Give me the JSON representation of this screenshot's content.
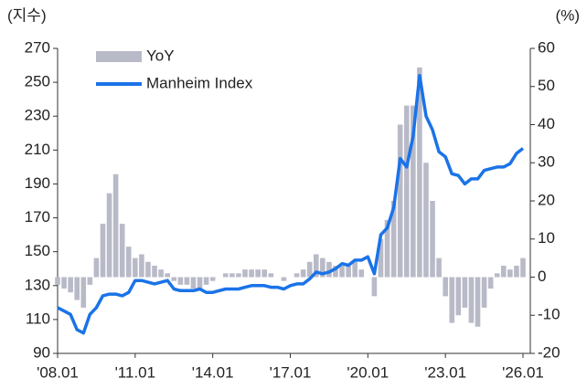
{
  "chart_data": {
    "type": "bar_line",
    "left_unit": "(지수)",
    "right_unit": "(%)",
    "categories": [
      "'08.01",
      null,
      null,
      null,
      null,
      null,
      null,
      null,
      null,
      null,
      null,
      null,
      "'11.01",
      null,
      null,
      null,
      null,
      null,
      null,
      null,
      null,
      null,
      null,
      null,
      "'14.01",
      null,
      null,
      null,
      null,
      null,
      null,
      null,
      null,
      null,
      null,
      null,
      "'17.01",
      null,
      null,
      null,
      null,
      null,
      null,
      null,
      null,
      null,
      null,
      null,
      "'20.01",
      null,
      null,
      null,
      null,
      null,
      null,
      null,
      null,
      null,
      null,
      null,
      "'23.01",
      null,
      null,
      null,
      null,
      null,
      null,
      null,
      null,
      null,
      null,
      null,
      "'26.01"
    ],
    "series": [
      {
        "name": "YoY",
        "type": "bar",
        "axis": "y2",
        "color": "#b9bac8",
        "values": [
          -2,
          -3,
          -4,
          -6,
          -8,
          -2,
          5,
          14,
          22,
          27,
          14,
          8,
          5,
          6,
          4,
          3,
          2,
          1,
          -1,
          -2,
          -2,
          -3,
          -3,
          -2,
          -1,
          0,
          1,
          1,
          1,
          2,
          2,
          2,
          2,
          1,
          0,
          -1,
          0,
          1,
          2,
          4,
          6,
          5,
          4,
          3,
          3,
          3,
          4,
          2,
          0,
          -5,
          10,
          15,
          20,
          40,
          45,
          45,
          55,
          30,
          20,
          5,
          -5,
          -12,
          -10,
          -8,
          -12,
          -13,
          -8,
          -3,
          1,
          3,
          2,
          3,
          5
        ]
      },
      {
        "name": "Manheim Index",
        "type": "line",
        "axis": "y",
        "color": "#1a73e8",
        "values": [
          117,
          115,
          113,
          104,
          102,
          113,
          117,
          124,
          125,
          125,
          124,
          126,
          133,
          133,
          132,
          131,
          132,
          133,
          128,
          127,
          127,
          127,
          128,
          126,
          126,
          127,
          128,
          128,
          128,
          129,
          130,
          130,
          130,
          129,
          129,
          128,
          130,
          131,
          131,
          134,
          138,
          137,
          138,
          140,
          143,
          142,
          145,
          145,
          147,
          137,
          160,
          164,
          176,
          205,
          200,
          218,
          254,
          230,
          222,
          209,
          206,
          196,
          195,
          190,
          193,
          193,
          198,
          199,
          200,
          200,
          202,
          208,
          211
        ]
      }
    ],
    "ylim": [
      90,
      270
    ],
    "yticks": [
      90,
      110,
      130,
      150,
      170,
      190,
      210,
      230,
      250,
      270
    ],
    "y2lim": [
      -20,
      60
    ],
    "y2ticks": [
      -20,
      -10,
      0,
      10,
      20,
      30,
      40,
      50,
      60
    ]
  }
}
